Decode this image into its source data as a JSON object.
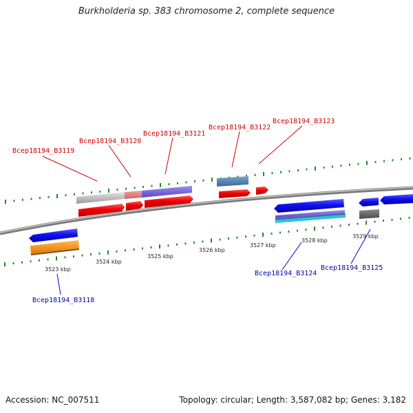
{
  "title": "Burkholderia sp. 383 chromosome 2, complete sequence",
  "footer": {
    "accession": "Accession: NC_007511",
    "topology": "Topology: circular; Length: 3,587,082 bp; Genes: 3,182"
  },
  "colors": {
    "forward_label": "#cc0000",
    "reverse_label": "#0000aa",
    "tick": "#1f8a1f",
    "backbone": "#888888"
  },
  "kbp_labels": [
    "3523 kbp",
    "3524 kbp",
    "3525 kbp",
    "3526 kbp",
    "3527 kbp",
    "3528 kbp",
    "3529 kbp"
  ],
  "forward_genes": [
    "Bcep18194_B3119",
    "Bcep18194_B3120",
    "Bcep18194_B3121",
    "Bcep18194_B3122",
    "Bcep18194_B3123"
  ],
  "reverse_genes": [
    "Bcep18194_B3118",
    "Bcep18194_B3124",
    "Bcep18194_B3125"
  ]
}
